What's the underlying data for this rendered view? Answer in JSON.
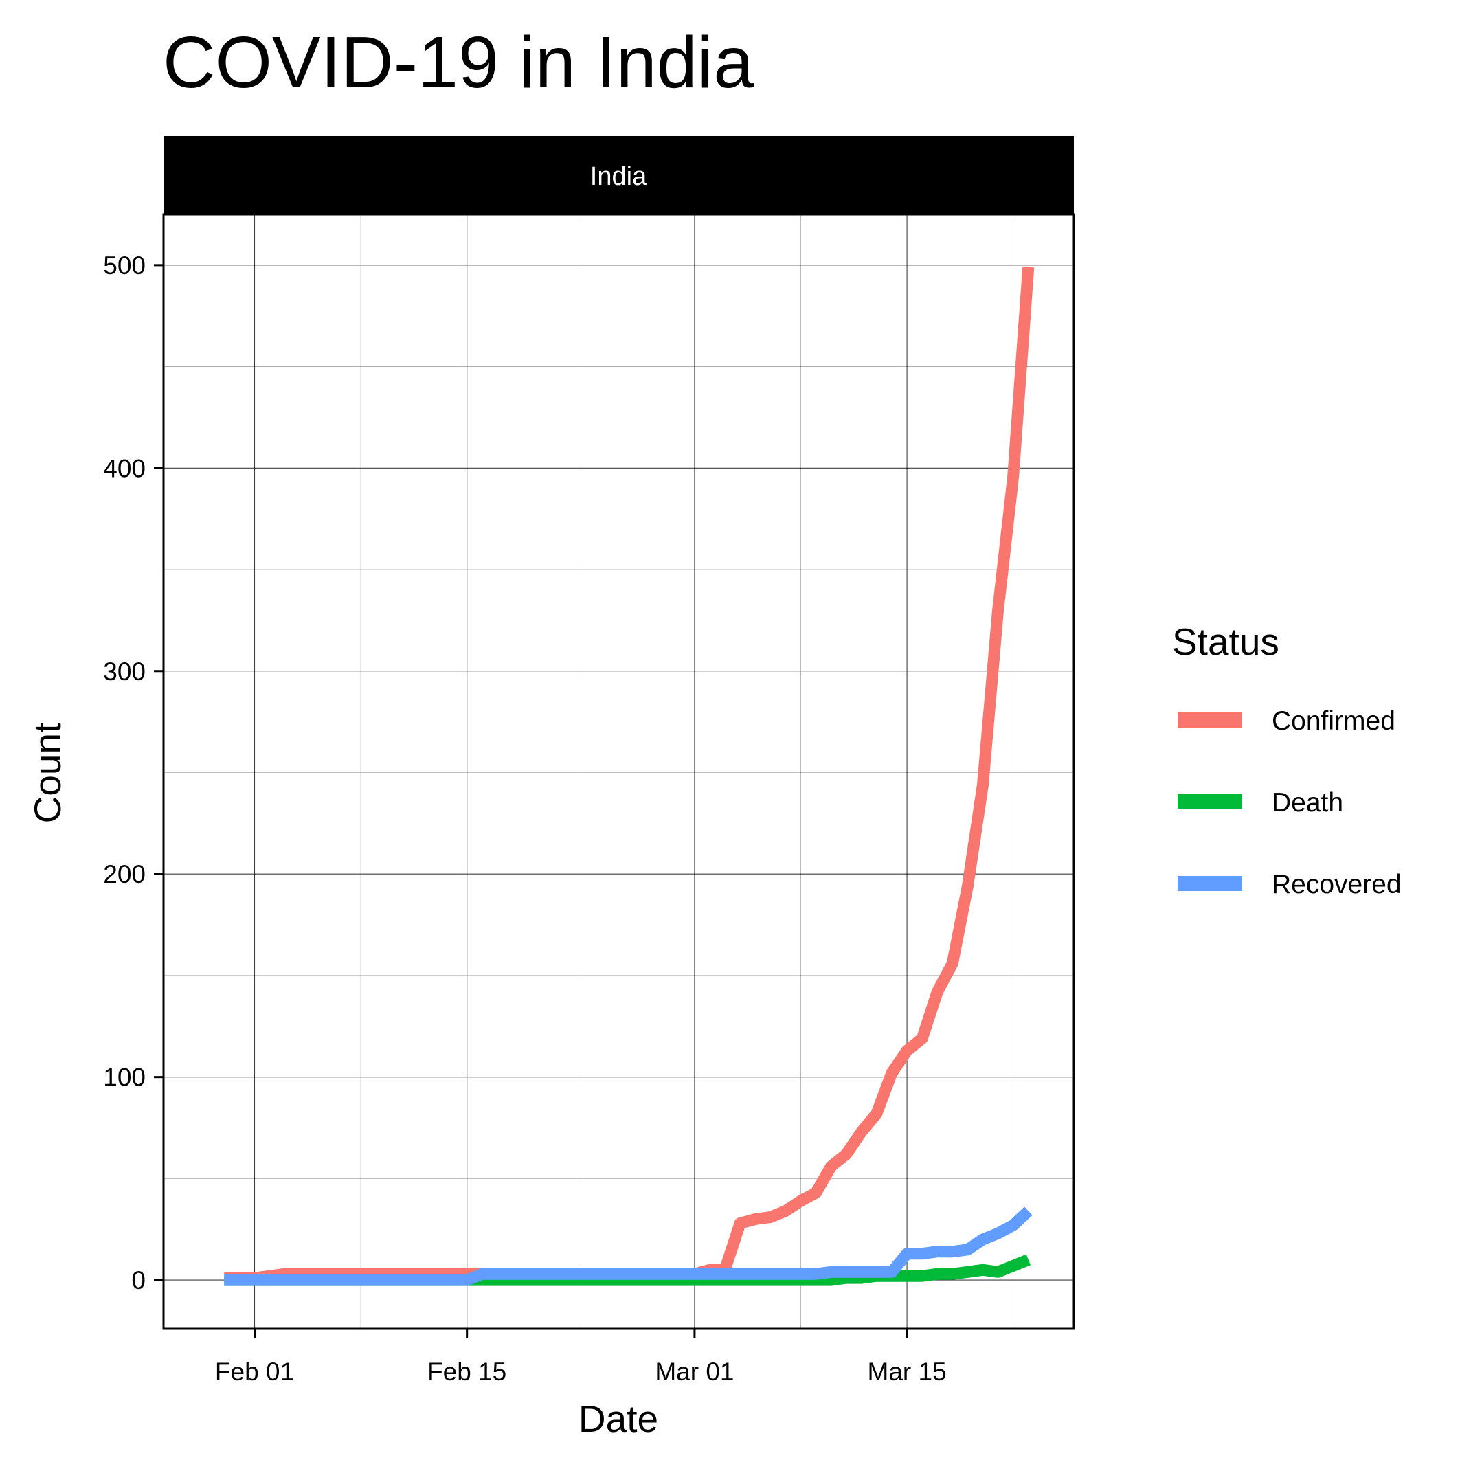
{
  "chart_data": {
    "type": "line",
    "title": "COVID-19 in India",
    "facet": "India",
    "xlabel": "Date",
    "ylabel": "Count",
    "x_ticks": [
      "Feb 01",
      "Feb 15",
      "Mar 01",
      "Mar 15"
    ],
    "y_ticks": [
      "0",
      "100",
      "200",
      "300",
      "400",
      "500"
    ],
    "xlim": [
      "2020-01-26",
      "2020-03-26"
    ],
    "ylim": [
      -24,
      525
    ],
    "grid": true,
    "legend": {
      "title": "Status",
      "position": "right"
    },
    "x": [
      "2020-01-30",
      "2020-01-31",
      "2020-02-01",
      "2020-02-02",
      "2020-02-03",
      "2020-02-04",
      "2020-02-05",
      "2020-02-06",
      "2020-02-07",
      "2020-02-08",
      "2020-02-09",
      "2020-02-10",
      "2020-02-11",
      "2020-02-12",
      "2020-02-13",
      "2020-02-14",
      "2020-02-15",
      "2020-02-16",
      "2020-02-17",
      "2020-02-18",
      "2020-02-19",
      "2020-02-20",
      "2020-02-21",
      "2020-02-22",
      "2020-02-23",
      "2020-02-24",
      "2020-02-25",
      "2020-02-26",
      "2020-02-27",
      "2020-02-28",
      "2020-02-29",
      "2020-03-01",
      "2020-03-02",
      "2020-03-03",
      "2020-03-04",
      "2020-03-05",
      "2020-03-06",
      "2020-03-07",
      "2020-03-08",
      "2020-03-09",
      "2020-03-10",
      "2020-03-11",
      "2020-03-12",
      "2020-03-13",
      "2020-03-14",
      "2020-03-15",
      "2020-03-16",
      "2020-03-17",
      "2020-03-18",
      "2020-03-19",
      "2020-03-20",
      "2020-03-21",
      "2020-03-22",
      "2020-03-23"
    ],
    "series": [
      {
        "name": "Confirmed",
        "color": "#F8766D",
        "values": [
          1,
          1,
          1,
          2,
          3,
          3,
          3,
          3,
          3,
          3,
          3,
          3,
          3,
          3,
          3,
          3,
          3,
          3,
          3,
          3,
          3,
          3,
          3,
          3,
          3,
          3,
          3,
          3,
          3,
          3,
          3,
          3,
          5,
          5,
          28,
          30,
          31,
          34,
          39,
          43,
          56,
          62,
          73,
          82,
          102,
          113,
          119,
          142,
          156,
          194,
          244,
          330,
          396,
          499
        ]
      },
      {
        "name": "Death",
        "color": "#00BA38",
        "values": [
          0,
          0,
          0,
          0,
          0,
          0,
          0,
          0,
          0,
          0,
          0,
          0,
          0,
          0,
          0,
          0,
          0,
          0,
          0,
          0,
          0,
          0,
          0,
          0,
          0,
          0,
          0,
          0,
          0,
          0,
          0,
          0,
          0,
          0,
          0,
          0,
          0,
          0,
          0,
          0,
          0,
          1,
          1,
          2,
          2,
          2,
          2,
          3,
          3,
          4,
          5,
          4,
          7,
          10
        ]
      },
      {
        "name": "Recovered",
        "color": "#619CFF",
        "values": [
          0,
          0,
          0,
          0,
          0,
          0,
          0,
          0,
          0,
          0,
          0,
          0,
          0,
          0,
          0,
          0,
          0,
          3,
          3,
          3,
          3,
          3,
          3,
          3,
          3,
          3,
          3,
          3,
          3,
          3,
          3,
          3,
          3,
          3,
          3,
          3,
          3,
          3,
          3,
          3,
          4,
          4,
          4,
          4,
          4,
          13,
          13,
          14,
          14,
          15,
          20,
          23,
          27,
          34
        ]
      }
    ]
  }
}
